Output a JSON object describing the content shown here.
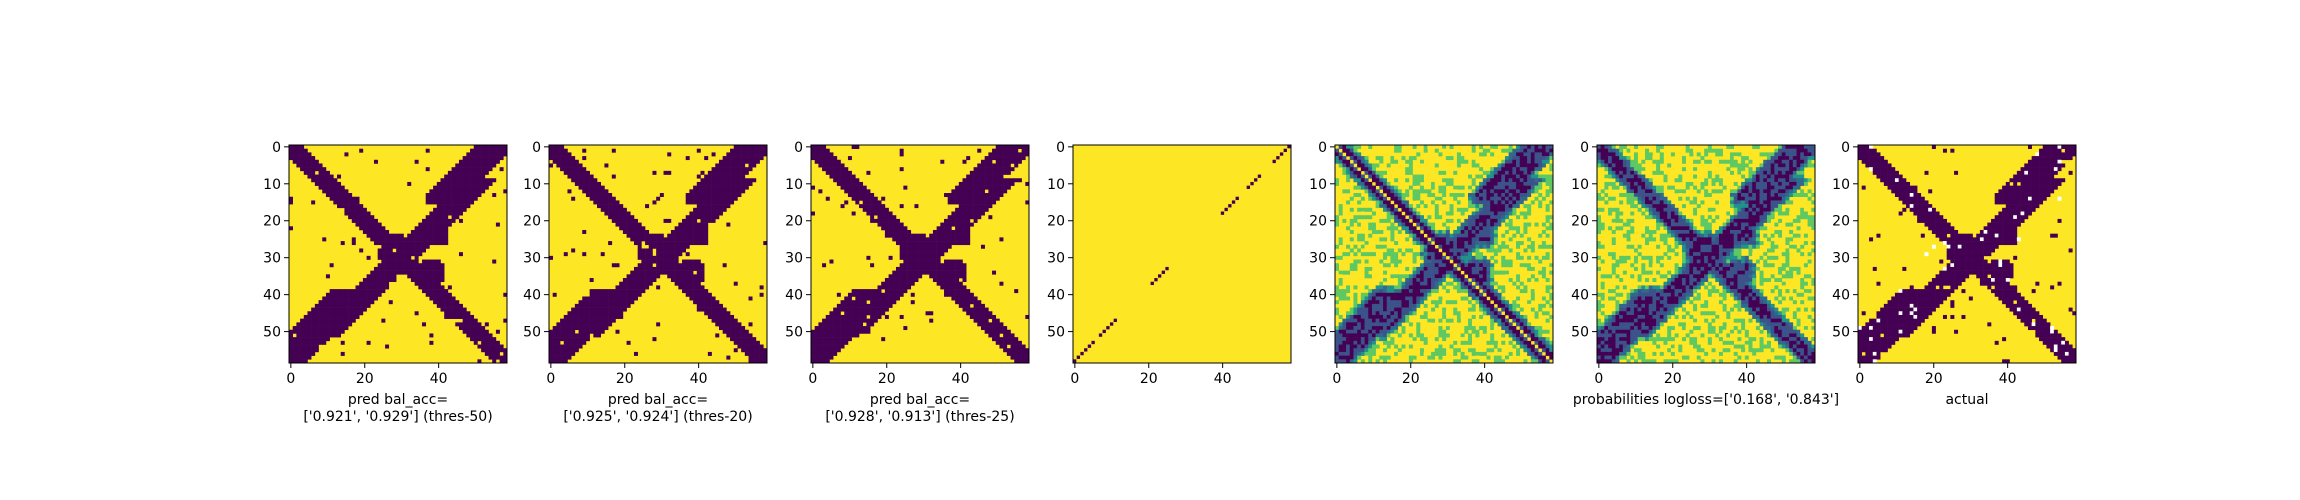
{
  "colors": {
    "low": "#440154",
    "mid_dark": "#31688e",
    "mid": "#21918c",
    "mid_light": "#5ec962",
    "high": "#fde725",
    "white": "#ffffff"
  },
  "chart_data": [
    {
      "type": "heatmap",
      "kind": "binary",
      "xlabel": [
        "pred bal_acc=",
        "['0.921', '0.929'] (thres-50)"
      ],
      "x_ticks": [
        0,
        20,
        40
      ],
      "y_ticks": [
        0,
        10,
        20,
        30,
        40,
        50
      ],
      "size": 59,
      "values_description": "binary contact map; pattern: main diagonal band, cross-diagonal band, and blobs"
    },
    {
      "type": "heatmap",
      "kind": "binary",
      "xlabel": [
        "pred bal_acc=",
        "['0.925', '0.924'] (thres-20)"
      ],
      "x_ticks": [
        0,
        20,
        40
      ],
      "y_ticks": [
        0,
        10,
        20,
        30,
        40,
        50
      ],
      "size": 59
    },
    {
      "type": "heatmap",
      "kind": "binary",
      "xlabel": [
        "pred bal_acc=",
        "['0.928', '0.913'] (thres-25)"
      ],
      "x_ticks": [
        0,
        20,
        40
      ],
      "y_ticks": [
        0,
        10,
        20,
        30,
        40,
        50
      ],
      "size": 59
    },
    {
      "type": "heatmap",
      "kind": "sparse-diagonal",
      "xlabel": [],
      "x_ticks": [
        0,
        20,
        40
      ],
      "y_ticks": [
        0,
        10,
        20,
        30,
        40,
        50
      ],
      "size": 59,
      "diagonal_segments": [
        [
          0,
          5
        ],
        [
          7,
          11
        ],
        [
          21,
          25
        ],
        [
          40,
          44
        ],
        [
          47,
          50
        ],
        [
          54,
          58
        ]
      ]
    },
    {
      "type": "heatmap",
      "kind": "continuous",
      "xlabel": [],
      "x_ticks": [
        0,
        20,
        40
      ],
      "y_ticks": [
        0,
        10,
        20,
        30,
        40,
        50
      ],
      "size": 59
    },
    {
      "type": "heatmap",
      "kind": "continuous",
      "xlabel": [
        "probabilities logloss=['0.168', '0.843']"
      ],
      "x_ticks": [
        0,
        20,
        40
      ],
      "y_ticks": [
        0,
        10,
        20,
        30,
        40,
        50
      ],
      "size": 59
    },
    {
      "type": "heatmap",
      "kind": "binary",
      "xlabel": [
        "actual"
      ],
      "x_ticks": [
        0,
        20,
        40
      ],
      "y_ticks": [
        0,
        10,
        20,
        30,
        40,
        50
      ],
      "size": 59
    }
  ]
}
